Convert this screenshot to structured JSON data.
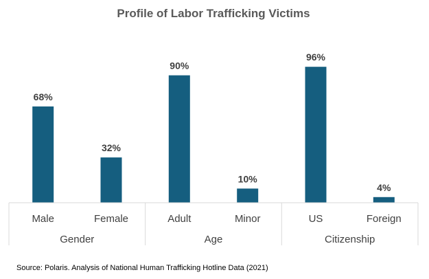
{
  "chart_data": {
    "type": "bar",
    "title": "Profile of Labor Trafficking Victims",
    "categories": [
      "Male",
      "Female",
      "Adult",
      "Minor",
      "US",
      "Foreign"
    ],
    "groups": [
      {
        "name": "Gender",
        "categories": [
          "Male",
          "Female"
        ]
      },
      {
        "name": "Age",
        "categories": [
          "Adult",
          "Minor"
        ]
      },
      {
        "name": "Citizenship",
        "categories": [
          "US",
          "Foreign"
        ]
      }
    ],
    "values": [
      68,
      32,
      90,
      10,
      96,
      4
    ],
    "data_labels": [
      "68%",
      "32%",
      "90%",
      "10%",
      "96%",
      "4%"
    ],
    "ylim": [
      0,
      100
    ],
    "grid": false,
    "legend": "none",
    "bar_color": "#155e7f",
    "source": "Source: Polaris. Analysis of National Human Trafficking Hotline Data (2021)"
  }
}
